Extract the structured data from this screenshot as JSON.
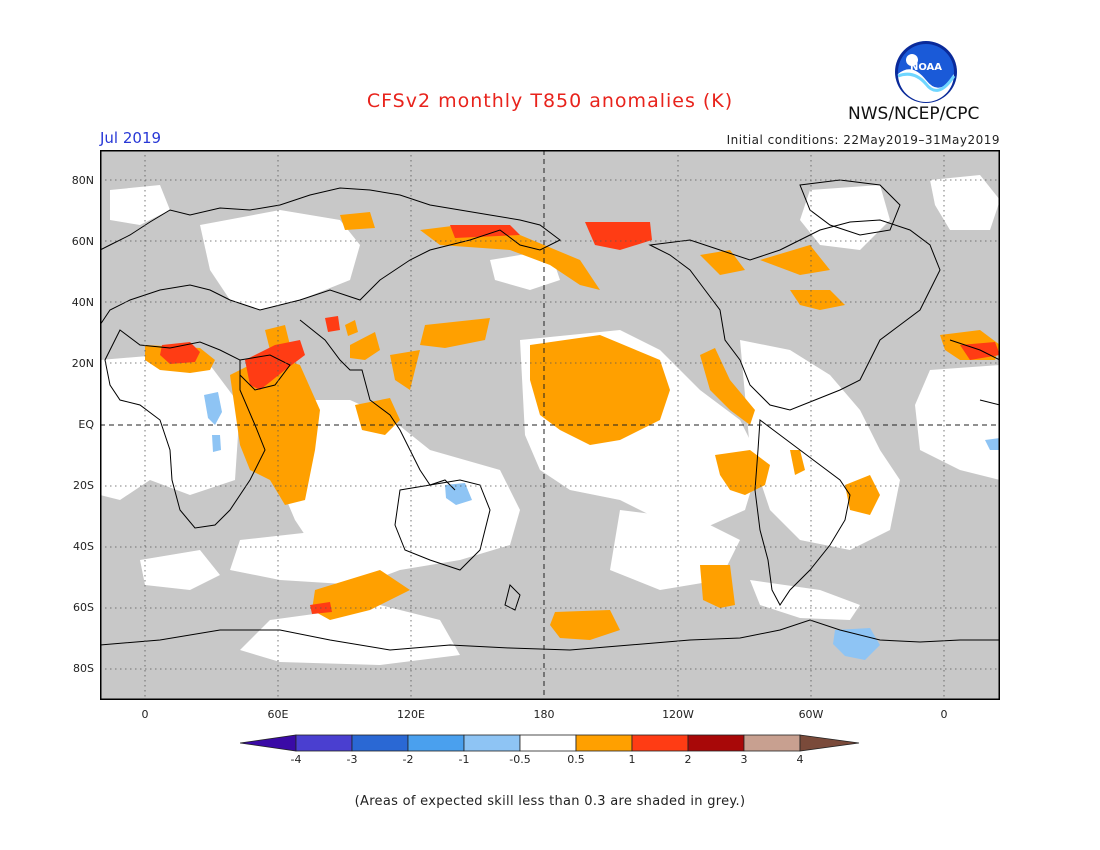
{
  "header": {
    "title": "CFSv2 monthly T850 anomalies (K)",
    "month": "Jul 2019",
    "initial_conditions": "Initial conditions: 22May2019–31May2019",
    "organization": "NWS/NCEP/CPC",
    "logo_text": "NOAA"
  },
  "axes": {
    "lat_labels": [
      "80N",
      "60N",
      "40N",
      "20N",
      "EQ",
      "20S",
      "40S",
      "60S",
      "80S"
    ],
    "lon_labels": [
      "0",
      "60E",
      "120E",
      "180",
      "120W",
      "60W",
      "0"
    ]
  },
  "colorbar": {
    "tick_labels": [
      "-4",
      "-3",
      "-2",
      "-1",
      "-0.5",
      "0.5",
      "1",
      "2",
      "3",
      "4"
    ],
    "colors": [
      "#3a0aa6",
      "#4a3fd0",
      "#2a68d4",
      "#4aa0ee",
      "#8ec4f4",
      "#ffffff",
      "#ffa000",
      "#ff3c14",
      "#a80808",
      "#c8a090",
      "#7a4a3a"
    ]
  },
  "colors": {
    "low_skill_grey": "#c8c8c8",
    "warm_anomaly": "#ffa000",
    "strong_warm_anomaly": "#ff3c14",
    "cold_anomaly": "#8ec4f4",
    "title_red": "#e8231c",
    "month_blue": "#2838d6"
  },
  "footer": {
    "note": "(Areas of expected skill less than 0.3 are shaded in grey.)"
  }
}
